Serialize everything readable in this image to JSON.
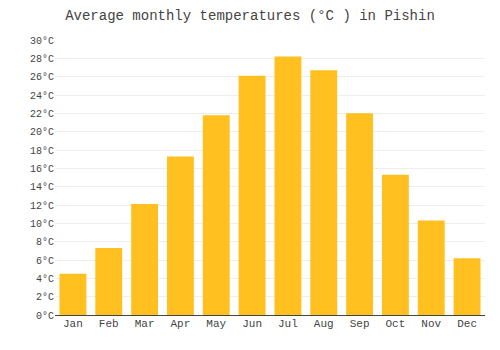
{
  "chart_data": {
    "type": "bar",
    "title": "Average monthly temperatures (°C ) in Pishin",
    "categories": [
      "Jan",
      "Feb",
      "Mar",
      "Apr",
      "May",
      "Jun",
      "Jul",
      "Aug",
      "Sep",
      "Oct",
      "Nov",
      "Dec"
    ],
    "values": [
      4.5,
      7.3,
      12.1,
      17.3,
      21.8,
      26.1,
      28.2,
      26.7,
      22.0,
      15.3,
      10.3,
      6.2
    ],
    "color": "#FFC020",
    "ylim": [
      0,
      30
    ],
    "yticks": [
      {
        "value": 0,
        "label": "0°C"
      },
      {
        "value": 2,
        "label": "2°C"
      },
      {
        "value": 4,
        "label": "4°C"
      },
      {
        "value": 6,
        "label": "6°C"
      },
      {
        "value": 8,
        "label": "8°C"
      },
      {
        "value": 10,
        "label": "10°C"
      },
      {
        "value": 12,
        "label": "12°C"
      },
      {
        "value": 14,
        "label": "14°C"
      },
      {
        "value": 16,
        "label": "16°C"
      },
      {
        "value": 18,
        "label": "18°C"
      },
      {
        "value": 20,
        "label": "20°C"
      },
      {
        "value": 22,
        "label": "22°C"
      },
      {
        "value": 24,
        "label": "24°C"
      },
      {
        "value": 26,
        "label": "26°C"
      },
      {
        "value": 28,
        "label": "28°C"
      },
      {
        "value": 30,
        "label": "30°C"
      }
    ],
    "grid": true
  }
}
